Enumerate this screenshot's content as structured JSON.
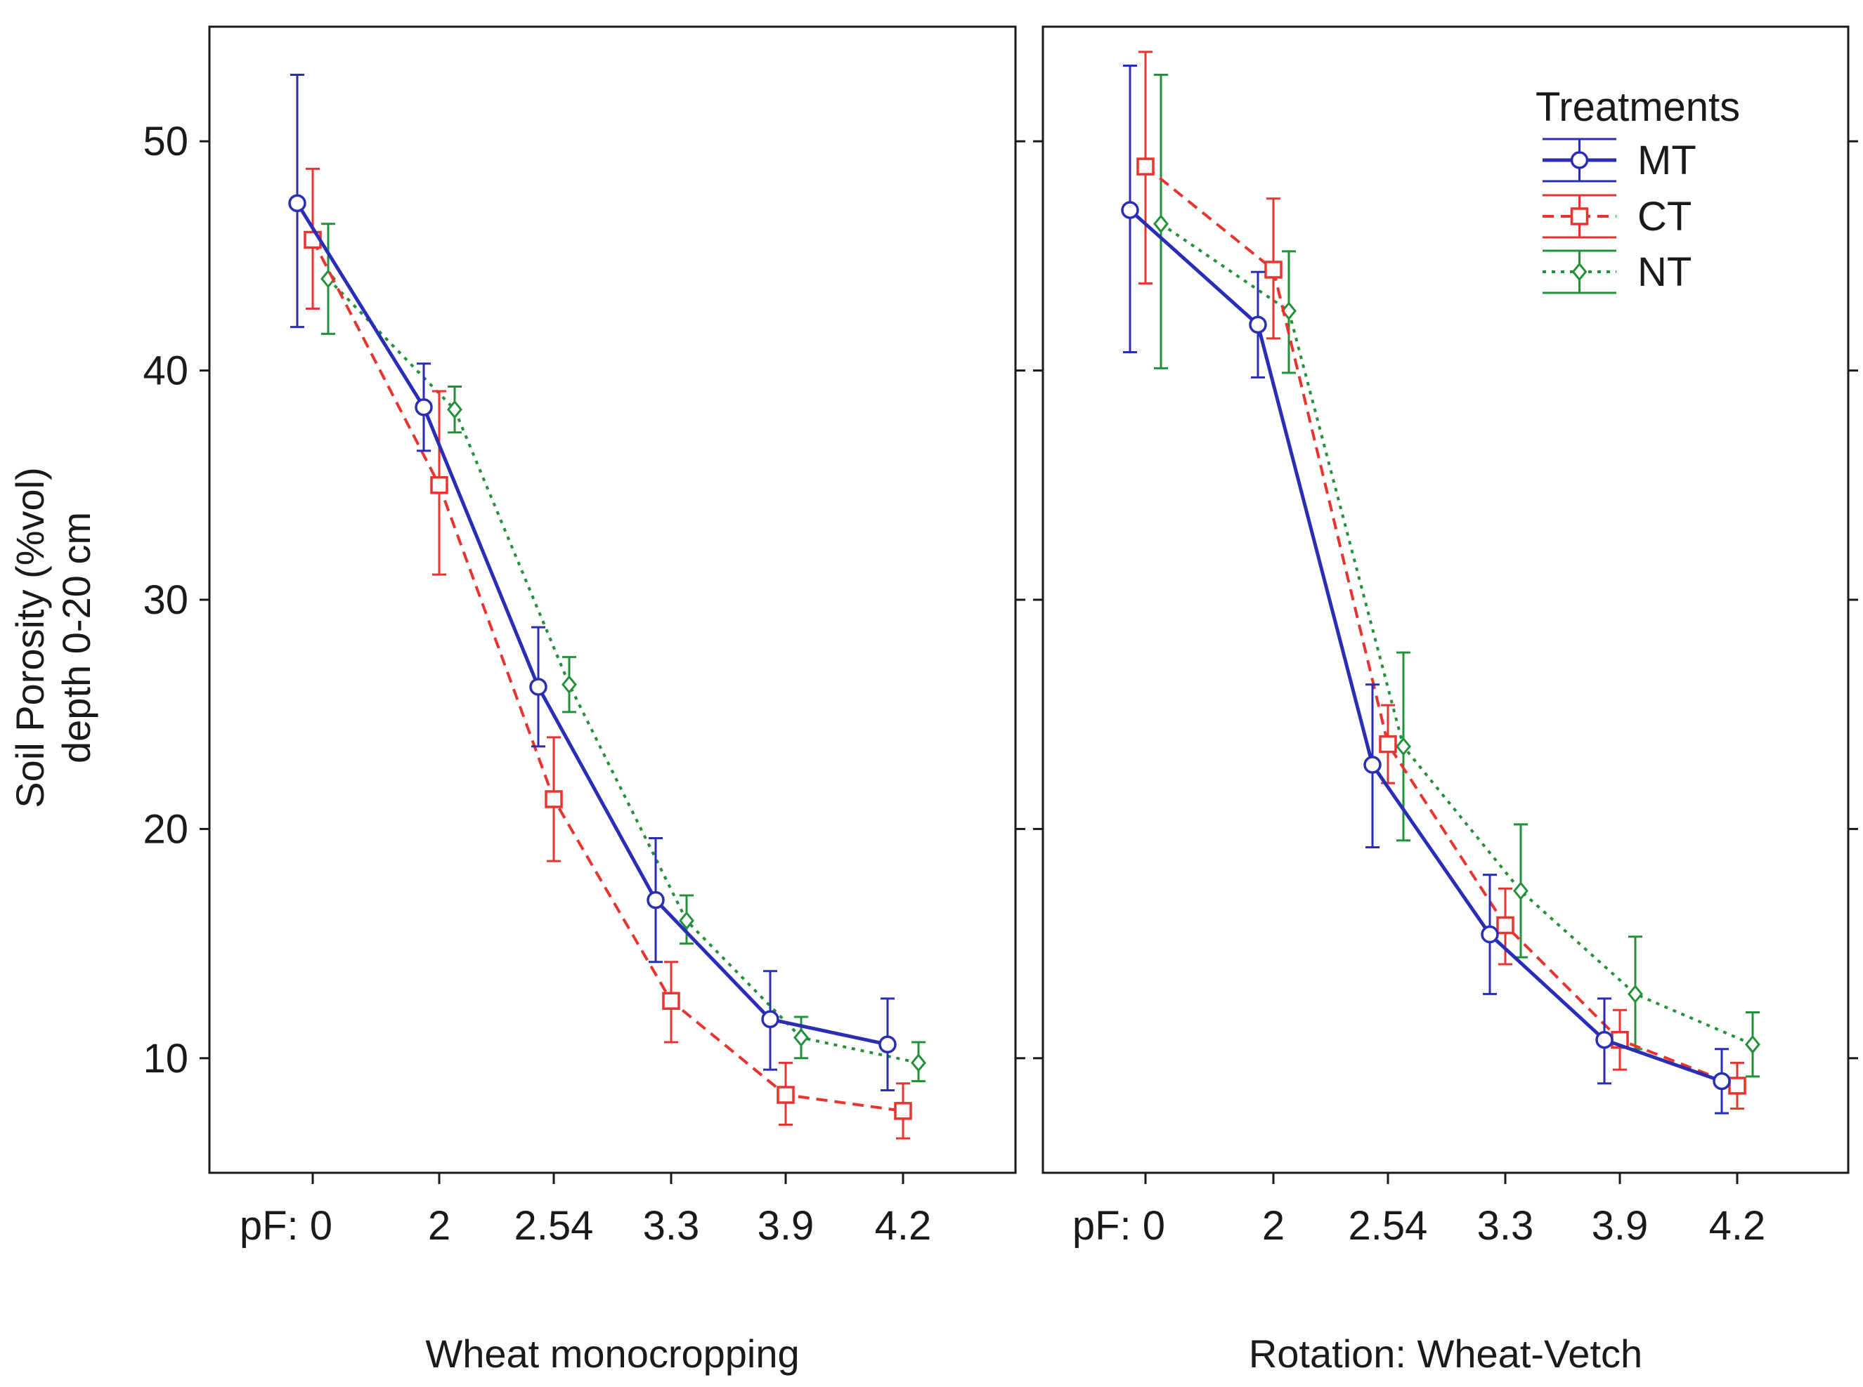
{
  "chart_data": {
    "type": "line",
    "y_axis": {
      "label_line1": "Soil Porosity (%vol)",
      "label_line2": "depth 0-20 cm",
      "ticks": [
        10,
        20,
        30,
        40,
        50
      ],
      "tick_labels": [
        "10",
        "20",
        "30",
        "40",
        "50"
      ],
      "ylim": [
        5,
        55
      ]
    },
    "x_axis": {
      "categories": [
        "pF: 0",
        "2",
        "2.54",
        "3.3",
        "3.9",
        "4.2"
      ]
    },
    "legend": {
      "title": "Treatments",
      "placement": "top-right of right panel",
      "entries": [
        "MT",
        "CT",
        "NT"
      ]
    },
    "series_style": [
      {
        "name": "MT",
        "color": "#2a2eb5",
        "dash": "solid",
        "marker": "circle"
      },
      {
        "name": "CT",
        "color": "#e8332f",
        "dash": "dashed",
        "marker": "square"
      },
      {
        "name": "NT",
        "color": "#23913a",
        "dash": "dotted",
        "marker": "diamond"
      }
    ],
    "panels": [
      {
        "title": "Wheat monocropping",
        "series": [
          {
            "name": "MT",
            "values": [
              47.3,
              38.4,
              26.2,
              16.9,
              11.7,
              10.6
            ],
            "err_low": [
              41.9,
              36.5,
              23.6,
              14.2,
              9.5,
              8.6
            ],
            "err_high": [
              52.9,
              40.3,
              28.8,
              19.6,
              13.8,
              12.6
            ]
          },
          {
            "name": "CT",
            "values": [
              45.7,
              35.0,
              21.3,
              12.5,
              8.4,
              7.7
            ],
            "err_low": [
              42.7,
              31.1,
              18.6,
              10.7,
              7.1,
              6.5
            ],
            "err_high": [
              48.8,
              39.1,
              24.0,
              14.2,
              9.8,
              8.9
            ]
          },
          {
            "name": "NT",
            "values": [
              44.0,
              38.3,
              26.3,
              16.0,
              10.9,
              9.8
            ],
            "err_low": [
              41.6,
              37.3,
              25.1,
              15.0,
              10.0,
              9.0
            ],
            "err_high": [
              46.4,
              39.3,
              27.5,
              17.1,
              11.8,
              10.7
            ]
          }
        ]
      },
      {
        "title": "Rotation: Wheat-Vetch",
        "series": [
          {
            "name": "MT",
            "values": [
              47.0,
              42.0,
              22.8,
              15.4,
              10.8,
              9.0
            ],
            "err_low": [
              40.8,
              39.7,
              19.2,
              12.8,
              8.9,
              7.6
            ],
            "err_high": [
              53.3,
              44.3,
              26.3,
              18.0,
              12.6,
              10.4
            ]
          },
          {
            "name": "CT",
            "values": [
              48.9,
              44.4,
              23.7,
              15.8,
              10.8,
              8.8
            ],
            "err_low": [
              43.8,
              41.4,
              22.0,
              14.1,
              9.5,
              7.8
            ],
            "err_high": [
              53.9,
              47.5,
              25.4,
              17.4,
              12.1,
              9.8
            ]
          },
          {
            "name": "NT",
            "values": [
              46.4,
              42.6,
              23.6,
              17.3,
              12.8,
              10.6
            ],
            "err_low": [
              40.1,
              39.9,
              19.5,
              14.4,
              10.4,
              9.2
            ],
            "err_high": [
              52.9,
              45.2,
              27.7,
              20.2,
              15.3,
              12.0
            ]
          }
        ]
      }
    ]
  }
}
